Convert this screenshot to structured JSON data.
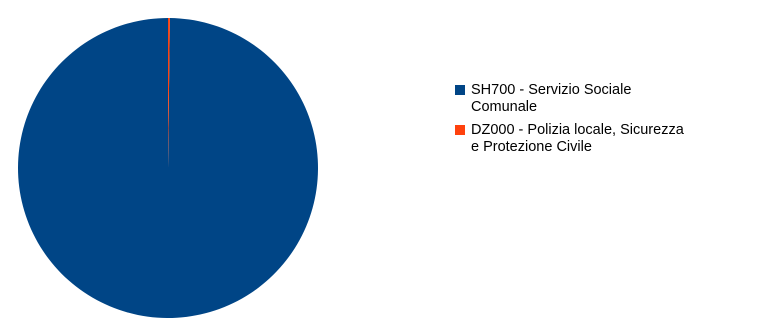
{
  "chart_data": {
    "type": "pie",
    "title": "",
    "categories": [
      "SH700 - Servizio Sociale Comunale",
      "DZ000 - Polizia locale, Sicurezza e Protezione Civile"
    ],
    "values": [
      99.8,
      0.2
    ],
    "colors": [
      "#004586",
      "#ff420e"
    ],
    "legend": {
      "position": "right",
      "items": [
        {
          "label_line1": "SH700 - Servizio Sociale",
          "label_line2": "Comunale",
          "color": "#004586"
        },
        {
          "label_line1": "DZ000 - Polizia locale, Sicurezza",
          "label_line2": "e Protezione Civile",
          "color": "#ff420e"
        }
      ]
    }
  }
}
